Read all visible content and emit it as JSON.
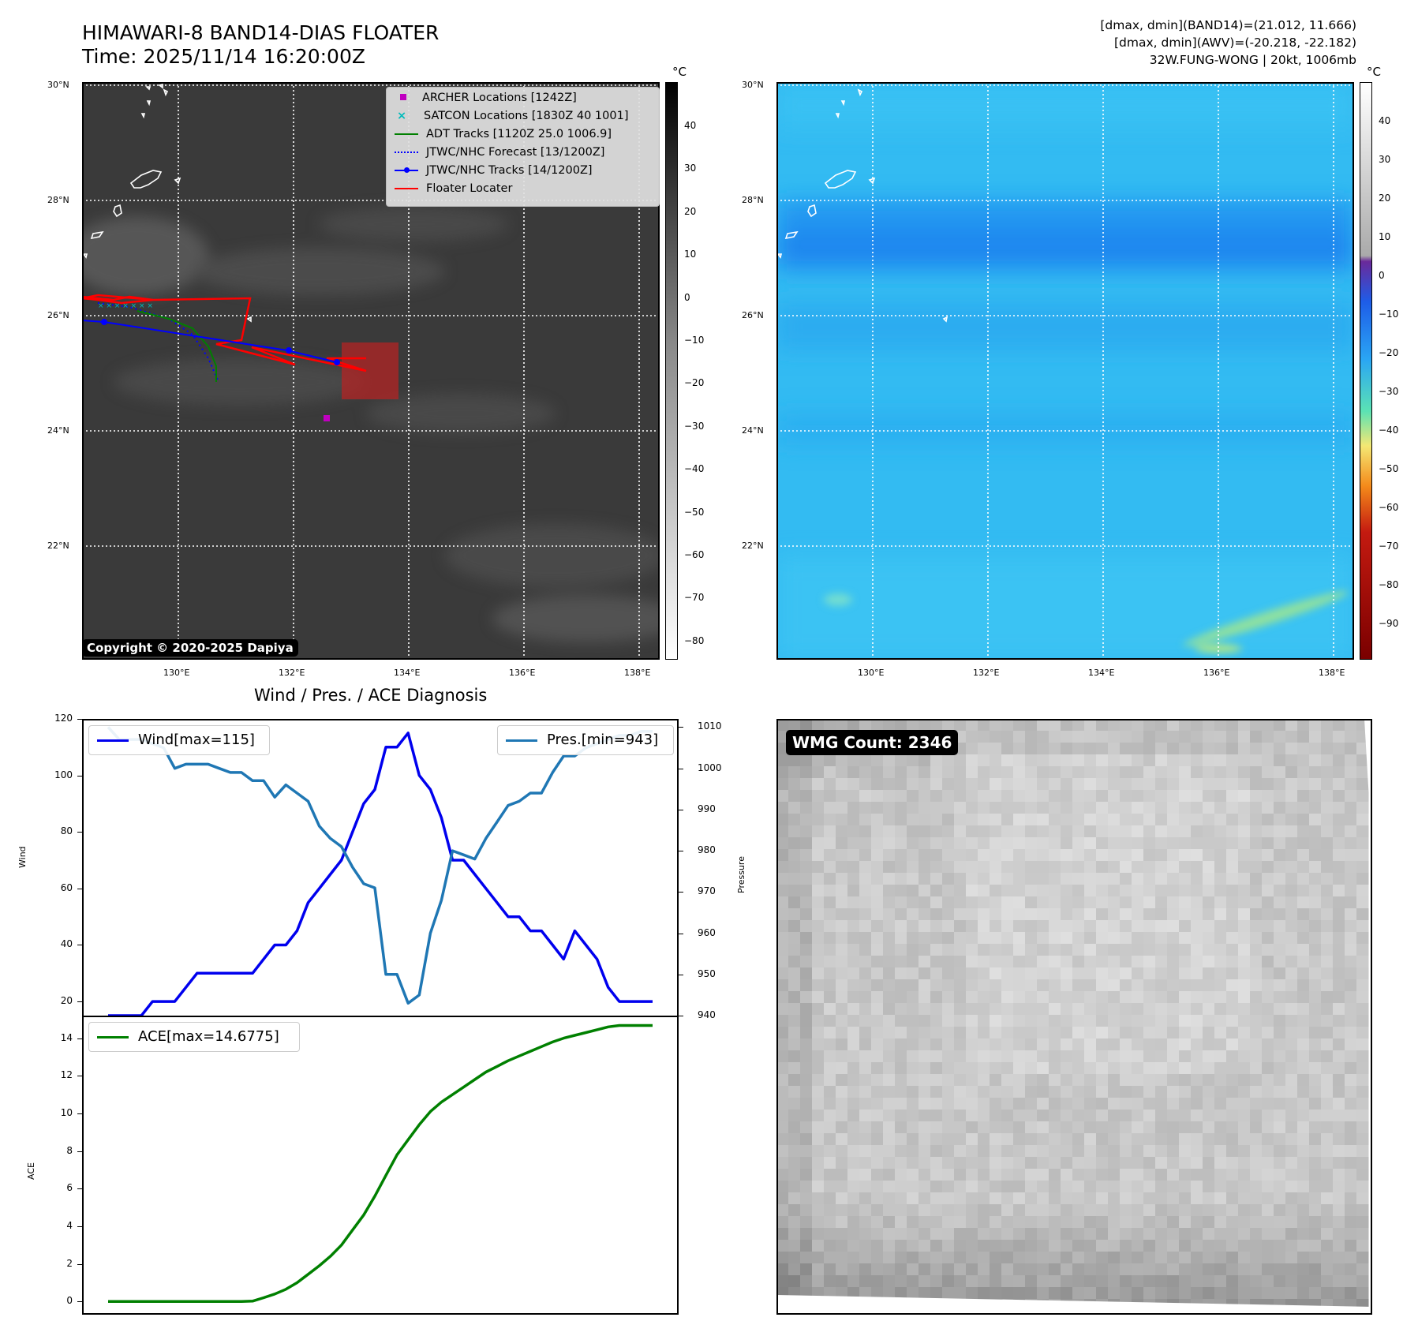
{
  "header": {
    "title_line1": "HIMAWARI-8 BAND14-DIAS FLOATER",
    "title_line2": "Time: 2025/11/14 16:20:00Z",
    "info_line1": "[dmax, dmin](BAND14)=(21.012, 11.666)",
    "info_line2": "[dmax, dmin](AWV)=(-20.218, -22.182)",
    "info_line3": "32W.FUNG-WONG | 20kt, 1006mb"
  },
  "map_axes": {
    "lat_labels": [
      "30°N",
      "28°N",
      "26°N",
      "24°N",
      "22°N"
    ],
    "lon_labels": [
      "130°E",
      "132°E",
      "134°E",
      "136°E",
      "138°E"
    ]
  },
  "colorbar_left": {
    "unit": "°C",
    "ticks": [
      "40",
      "30",
      "20",
      "10",
      "0",
      "−10",
      "−20",
      "−30",
      "−40",
      "−50",
      "−60",
      "−70",
      "−80"
    ]
  },
  "colorbar_right": {
    "unit": "°C",
    "ticks": [
      "40",
      "30",
      "20",
      "10",
      "0",
      "−10",
      "−20",
      "−30",
      "−40",
      "−50",
      "−60",
      "−70",
      "−80",
      "−90"
    ]
  },
  "legend": {
    "archer": "ARCHER Locations [1242Z]",
    "satcon": "SATCON Locations [1830Z 40 1001]",
    "adt": "ADT Tracks [1120Z 25.0 1006.9]",
    "forecast": "JTWC/NHC Forecast [13/1200Z]",
    "tracks": "JTWC/NHC Tracks [14/1200Z]",
    "floater": "Floater Locater"
  },
  "copyright": "Copyright © 2020-2025 Dapiya",
  "wmg": {
    "label": "WMG Count: 2346"
  },
  "colors": {
    "wind": "#0000ee",
    "pressure": "#1f77b4",
    "ace": "#008000",
    "floater": "#ff0000",
    "forecast": "#0000ff",
    "archer": "#c000c0",
    "satcon": "#00bbbb"
  },
  "chart_data": [
    {
      "type": "line",
      "title": "Wind / Pres. / ACE Diagnosis",
      "ylabel": "Wind",
      "y2label": "Pressure",
      "ylim": [
        15,
        120
      ],
      "y2lim": [
        940,
        1012
      ],
      "yticks": [
        "120",
        "100",
        "80",
        "60",
        "40",
        "20"
      ],
      "y2ticks": [
        "1010",
        "1000",
        "990",
        "980",
        "970",
        "960",
        "950",
        "940"
      ],
      "series": [
        {
          "name": "Wind[max=115]",
          "values": [
            15,
            15,
            15,
            15,
            20,
            20,
            20,
            25,
            30,
            30,
            30,
            30,
            30,
            30,
            35,
            40,
            40,
            45,
            55,
            60,
            65,
            70,
            80,
            90,
            95,
            110,
            110,
            115,
            100,
            95,
            85,
            70,
            70,
            65,
            60,
            55,
            50,
            50,
            45,
            45,
            40,
            35,
            45,
            40,
            35,
            25,
            20,
            20,
            20,
            20
          ]
        },
        {
          "name": "Pres.[min=943]",
          "values": [
            1010,
            1007,
            1007,
            1007,
            1006,
            1005,
            1000,
            1001,
            1001,
            1001,
            1000,
            999,
            999,
            997,
            997,
            993,
            996,
            994,
            992,
            986,
            983,
            981,
            976,
            972,
            971,
            950,
            950,
            943,
            945,
            960,
            968,
            980,
            979,
            978,
            983,
            987,
            991,
            992,
            994,
            994,
            999,
            1003,
            1003,
            1005,
            1006,
            1007,
            1008,
            1008,
            1009,
            1009
          ]
        }
      ]
    },
    {
      "type": "line",
      "ylabel": "ACE",
      "ylim": [
        -0.7,
        15.2
      ],
      "yticks": [
        "14",
        "12",
        "10",
        "8",
        "6",
        "4",
        "2",
        "0"
      ],
      "series": [
        {
          "name": "ACE[max=14.6775]",
          "values": [
            0,
            0,
            0,
            0,
            0,
            0,
            0,
            0,
            0,
            0,
            0,
            0,
            0,
            0.02,
            0.2,
            0.4,
            0.65,
            1.0,
            1.45,
            1.9,
            2.4,
            3.0,
            3.8,
            4.6,
            5.6,
            6.7,
            7.8,
            8.6,
            9.4,
            10.1,
            10.6,
            11.0,
            11.4,
            11.8,
            12.2,
            12.5,
            12.8,
            13.05,
            13.3,
            13.55,
            13.8,
            14.0,
            14.15,
            14.3,
            14.45,
            14.6,
            14.6775,
            14.6775,
            14.6775,
            14.6775
          ]
        }
      ]
    }
  ]
}
